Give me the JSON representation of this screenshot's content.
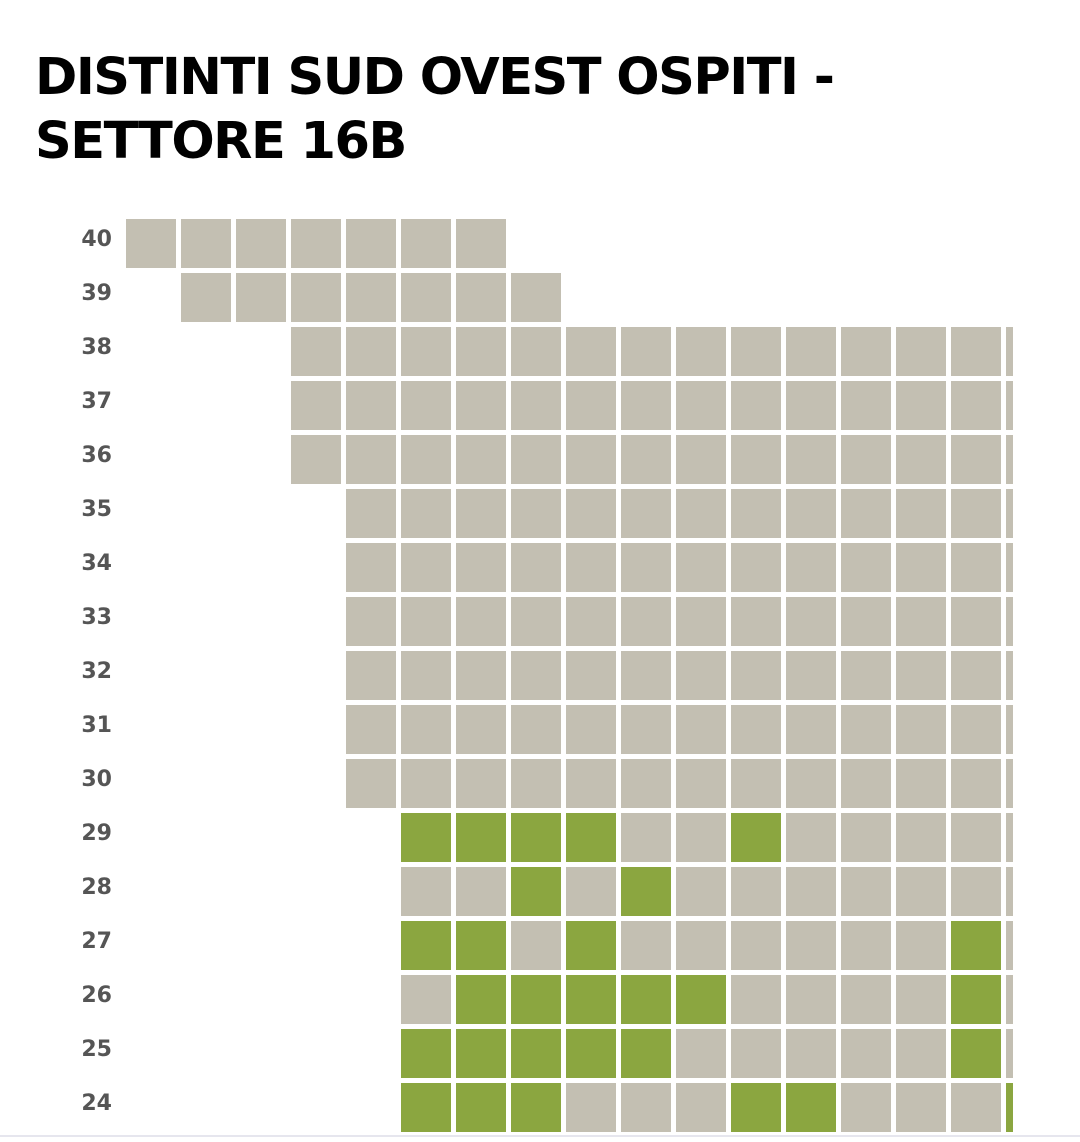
{
  "header": {
    "title": "DISTINTI SUD OVEST OSPITI - SETTORE 16B"
  },
  "seat_map": {
    "colors": {
      "1": "#8ba640",
      "0": "#c3bfb2"
    },
    "rows": [
      {
        "label": "40",
        "seats": [
          0,
          0,
          0,
          0,
          0,
          0,
          0,
          null,
          null,
          null,
          null,
          null,
          null,
          null,
          null,
          null,
          null
        ]
      },
      {
        "label": "39",
        "seats": [
          null,
          0,
          0,
          0,
          0,
          0,
          0,
          0,
          null,
          null,
          null,
          null,
          null,
          null,
          null,
          null,
          null
        ]
      },
      {
        "label": "38",
        "seats": [
          null,
          null,
          null,
          0,
          0,
          0,
          0,
          0,
          0,
          0,
          0,
          0,
          0,
          0,
          0,
          0,
          0
        ]
      },
      {
        "label": "37",
        "seats": [
          null,
          null,
          null,
          0,
          0,
          0,
          0,
          0,
          0,
          0,
          0,
          0,
          0,
          0,
          0,
          0,
          0
        ]
      },
      {
        "label": "36",
        "seats": [
          null,
          null,
          null,
          0,
          0,
          0,
          0,
          0,
          0,
          0,
          0,
          0,
          0,
          0,
          0,
          0,
          0
        ]
      },
      {
        "label": "35",
        "seats": [
          null,
          null,
          null,
          null,
          0,
          0,
          0,
          0,
          0,
          0,
          0,
          0,
          0,
          0,
          0,
          0,
          0
        ]
      },
      {
        "label": "34",
        "seats": [
          null,
          null,
          null,
          null,
          0,
          0,
          0,
          0,
          0,
          0,
          0,
          0,
          0,
          0,
          0,
          0,
          0
        ]
      },
      {
        "label": "33",
        "seats": [
          null,
          null,
          null,
          null,
          0,
          0,
          0,
          0,
          0,
          0,
          0,
          0,
          0,
          0,
          0,
          0,
          0
        ]
      },
      {
        "label": "32",
        "seats": [
          null,
          null,
          null,
          null,
          0,
          0,
          0,
          0,
          0,
          0,
          0,
          0,
          0,
          0,
          0,
          0,
          0
        ]
      },
      {
        "label": "31",
        "seats": [
          null,
          null,
          null,
          null,
          0,
          0,
          0,
          0,
          0,
          0,
          0,
          0,
          0,
          0,
          0,
          0,
          0
        ]
      },
      {
        "label": "30",
        "seats": [
          null,
          null,
          null,
          null,
          0,
          0,
          0,
          0,
          0,
          0,
          0,
          0,
          0,
          0,
          0,
          0,
          0
        ]
      },
      {
        "label": "29",
        "seats": [
          null,
          null,
          null,
          null,
          null,
          1,
          1,
          1,
          1,
          0,
          0,
          1,
          0,
          0,
          0,
          0,
          0
        ]
      },
      {
        "label": "28",
        "seats": [
          null,
          null,
          null,
          null,
          null,
          0,
          0,
          1,
          0,
          1,
          0,
          0,
          0,
          0,
          0,
          0,
          0
        ]
      },
      {
        "label": "27",
        "seats": [
          null,
          null,
          null,
          null,
          null,
          1,
          1,
          0,
          1,
          0,
          0,
          0,
          0,
          0,
          0,
          1,
          0
        ]
      },
      {
        "label": "26",
        "seats": [
          null,
          null,
          null,
          null,
          null,
          0,
          1,
          1,
          1,
          1,
          1,
          0,
          0,
          0,
          0,
          1,
          0
        ]
      },
      {
        "label": "25",
        "seats": [
          null,
          null,
          null,
          null,
          null,
          1,
          1,
          1,
          1,
          1,
          0,
          0,
          0,
          0,
          0,
          1,
          0
        ]
      },
      {
        "label": "24",
        "seats": [
          null,
          null,
          null,
          null,
          null,
          1,
          1,
          1,
          0,
          0,
          0,
          1,
          1,
          0,
          0,
          0,
          1
        ]
      }
    ]
  }
}
